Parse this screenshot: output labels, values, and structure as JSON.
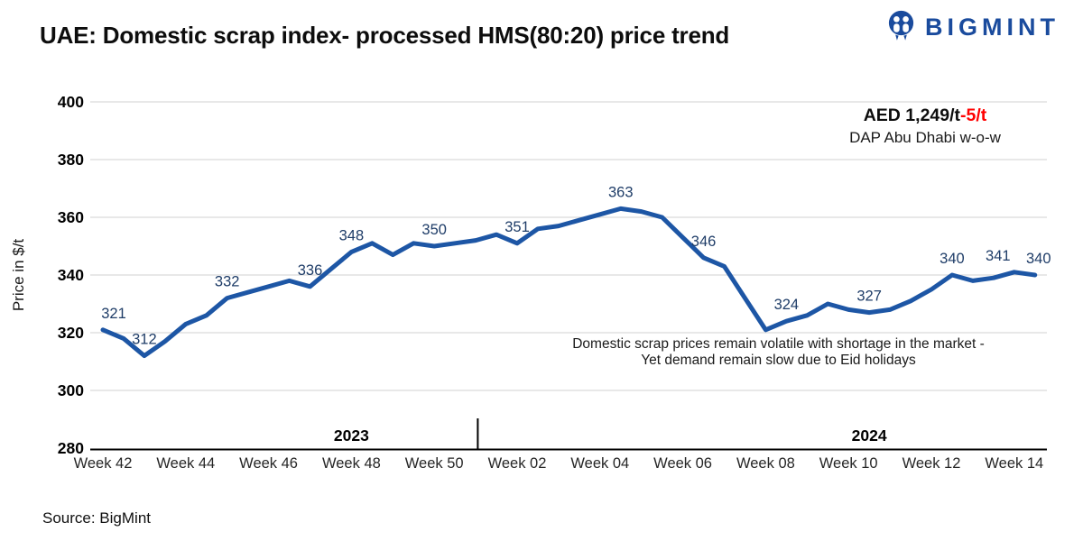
{
  "header": {
    "title": "UAE: Domestic scrap index- processed HMS(80:20) price trend",
    "brand": "BIGMINT",
    "brand_color": "#1a4b9d"
  },
  "annotations": {
    "price": {
      "value_text": "AED 1,249/t",
      "change_text": "-5/t",
      "change_color": "#ff0000",
      "subtitle": "DAP Abu Dhabi w-o-w"
    },
    "note_line1": "Domestic scrap prices remain volatile with shortage in the market -",
    "note_line2": "Yet demand remain slow due to  Eid holidays"
  },
  "footer": {
    "source": "Source: BigMint"
  },
  "chart_data": {
    "type": "line",
    "ylabel": "Price in $/t",
    "ylim": [
      280,
      400
    ],
    "yticks": [
      400,
      380,
      360,
      340,
      320,
      300,
      280
    ],
    "grid": true,
    "colors": {
      "grid": "#d9d9d9",
      "axis": "#000000"
    },
    "x_axis": {
      "tick_labels": [
        "Week 42",
        "Week 44",
        "Week 46",
        "Week 48",
        "Week 50",
        "Week 02",
        "Week 04",
        "Week 06",
        "Week 08",
        "Week 10",
        "Week 12",
        "Week 14"
      ],
      "tick_point_indices": [
        0,
        4,
        8,
        12,
        16,
        20,
        24,
        28,
        32,
        36,
        40,
        44
      ],
      "year_groups": [
        {
          "label": "2023",
          "anchor_index": 12
        },
        {
          "label": "2024",
          "anchor_index": 37
        }
      ],
      "divider_index": 18.1
    },
    "series": [
      {
        "name": "Domestic scrap processed HMS(80:20), DAP Abu Dhabi",
        "color": "#1d56a5",
        "label_color": "#1f3d68",
        "values": [
          321,
          318,
          312,
          317,
          323,
          326,
          332,
          334,
          336,
          338,
          336,
          342,
          348,
          351,
          347,
          351,
          350,
          351,
          352,
          354,
          351,
          356,
          357,
          359,
          361,
          363,
          362,
          360,
          353,
          346,
          343,
          332,
          321,
          324,
          326,
          330,
          328,
          327,
          328,
          331,
          335,
          340,
          338,
          339,
          341,
          340
        ],
        "point_labels": [
          {
            "index": 0,
            "text": "321",
            "dx": 12
          },
          {
            "index": 2,
            "text": "312"
          },
          {
            "index": 6,
            "text": "332"
          },
          {
            "index": 10,
            "text": "336"
          },
          {
            "index": 12,
            "text": "348"
          },
          {
            "index": 16,
            "text": "350"
          },
          {
            "index": 20,
            "text": "351"
          },
          {
            "index": 25,
            "text": "363"
          },
          {
            "index": 29,
            "text": "346"
          },
          {
            "index": 33,
            "text": "324"
          },
          {
            "index": 37,
            "text": "327"
          },
          {
            "index": 41,
            "text": "340"
          },
          {
            "index": 44,
            "text": "341",
            "dx": -18
          },
          {
            "index": 45,
            "text": "340",
            "dx": 4
          }
        ],
        "labeled_week_values": {
          "2023 Week 42": 321,
          "2023 Week 43": 312,
          "2023 Week 45": 332,
          "2023 Week 47": 336,
          "2023 Week 48": 348,
          "2023 Week 50": 350,
          "2024 Week 02": 351,
          "2024 Week 04": 363,
          "2024 Week 06": 346,
          "2024 Week 08": 324,
          "2024 Week 10": 327,
          "2024 Week 12": 340,
          "2024 Week 13": 341,
          "2024 Week 14": 340
        }
      }
    ]
  }
}
